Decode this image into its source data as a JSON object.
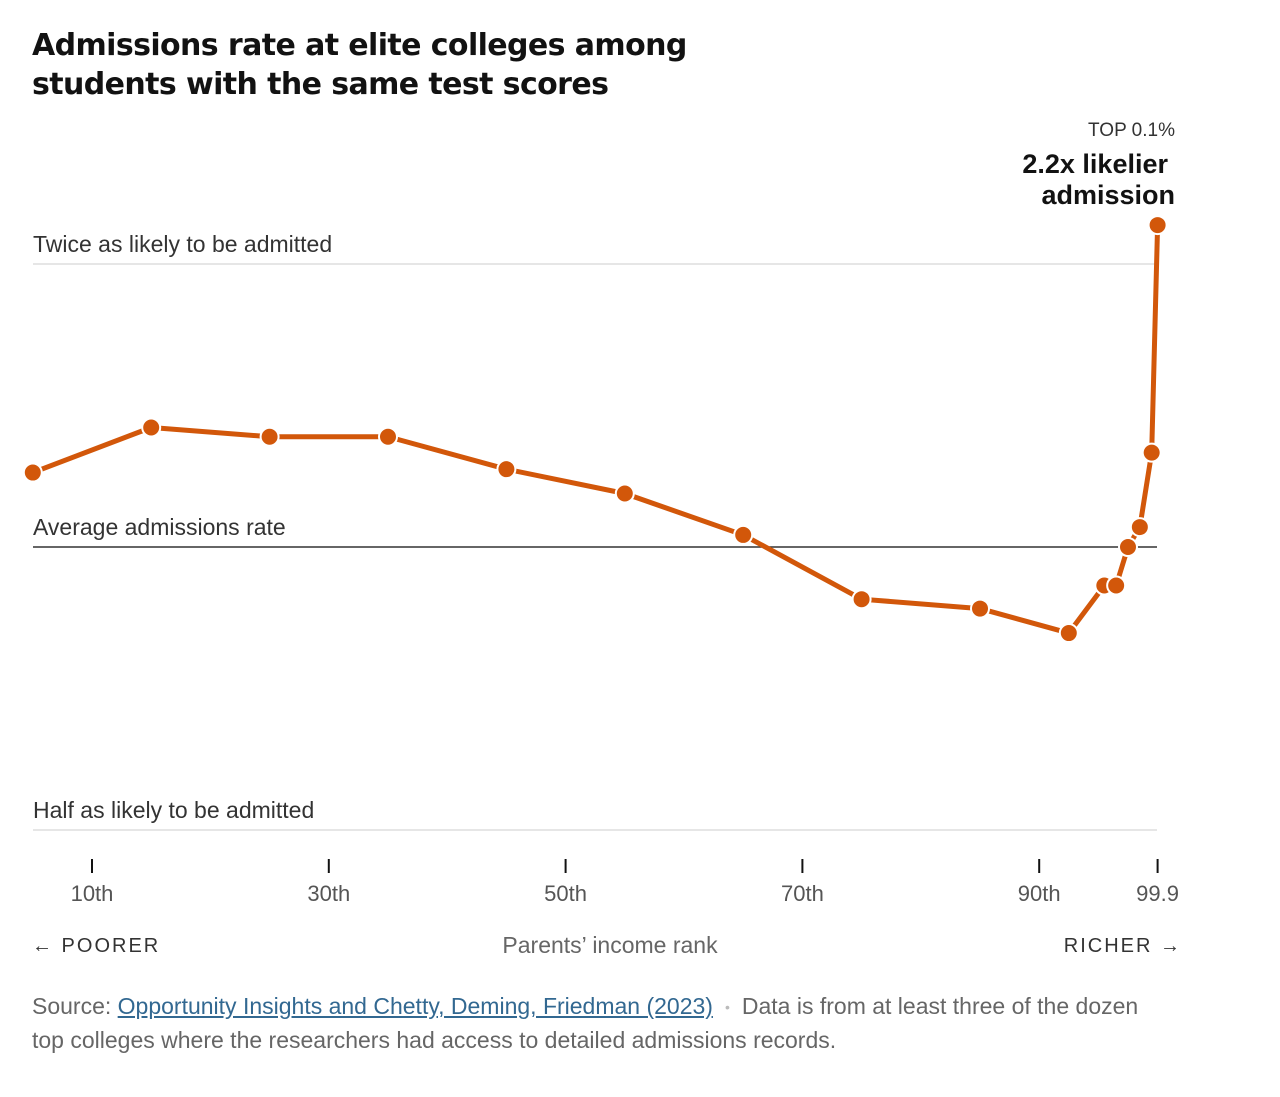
{
  "title": "Admissions rate at elite colleges among students with the same test scores",
  "annotation": {
    "top_label": "TOP 0.1%",
    "line1": "2.2x likelier",
    "line2": "admission"
  },
  "x_axis": {
    "left_direction": "← POORER",
    "center_label": "Parents’ income rank",
    "right_direction": "RICHER →"
  },
  "source": {
    "prefix": "Source: ",
    "link_text": "Opportunity Insights and Chetty, Deming, Friedman (2023)",
    "separator": "•",
    "note": "Data is from at least three of the dozen top colleges where the researchers had access to detailed admissions records."
  },
  "colors": {
    "line": "#d2570a",
    "reference_line": "#dddddd",
    "average_line": "#333333"
  },
  "chart_data": {
    "type": "line",
    "title": "Admissions rate at elite colleges among students with the same test scores",
    "xlabel": "Parents’ income rank",
    "ylabel": "",
    "y_scale": "log2",
    "ylim": [
      0.5,
      2.2
    ],
    "x_ticks": [
      {
        "pos": 0,
        "label": "10th"
      },
      {
        "pos": 2,
        "label": "30th"
      },
      {
        "pos": 4,
        "label": "50th"
      },
      {
        "pos": 6,
        "label": "70th"
      },
      {
        "pos": 8,
        "label": "90th"
      },
      {
        "pos": 9,
        "label": "99.9"
      }
    ],
    "reference_lines": [
      {
        "value": 2.0,
        "label": "Twice as likely to be admitted"
      },
      {
        "value": 1.0,
        "label": "Average admissions rate"
      },
      {
        "value": 0.5,
        "label": "Half as likely to be admitted"
      }
    ],
    "series": [
      {
        "x": [
          -0.5,
          0.5,
          1.5,
          2.5,
          3.5,
          4.5,
          5.5,
          6.5,
          7.5,
          8.25,
          8.55,
          8.65,
          8.75,
          8.85,
          8.95,
          9.0
        ],
        "values": [
          1.2,
          1.34,
          1.31,
          1.31,
          1.21,
          1.14,
          1.03,
          0.88,
          0.86,
          0.81,
          0.91,
          0.91,
          1.0,
          1.05,
          1.26,
          2.2
        ]
      }
    ]
  }
}
